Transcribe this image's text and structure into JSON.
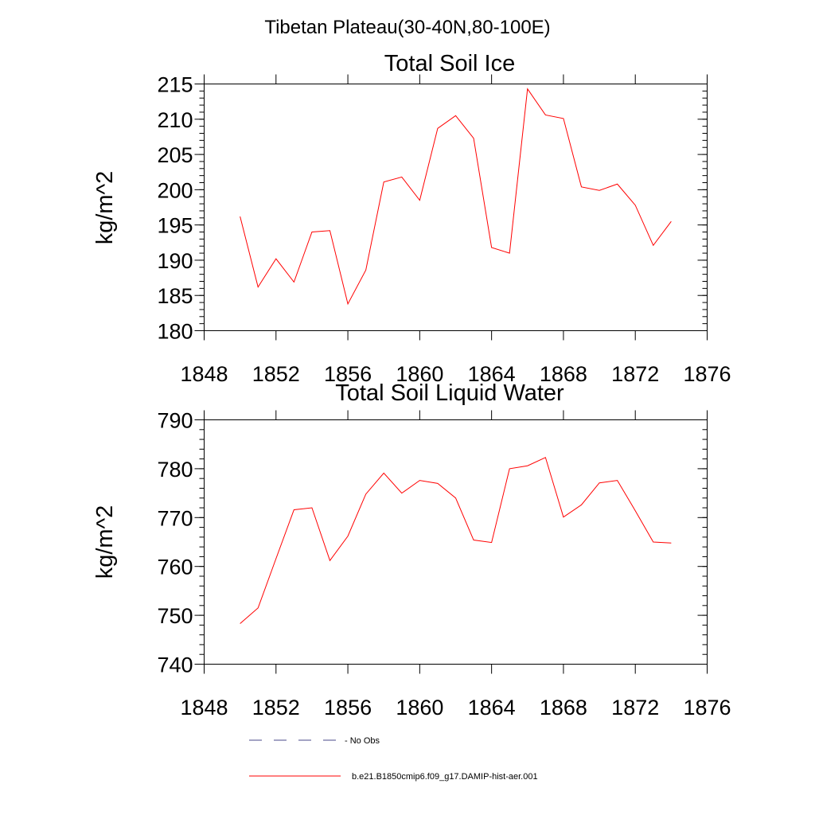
{
  "page": {
    "title": "Tibetan Plateau(30-40N,80-100E)"
  },
  "colors": {
    "series": "#ff0000",
    "no_obs": "#4a4a8a",
    "axes": "#000000",
    "background": "#ffffff"
  },
  "chart_data": [
    {
      "type": "line",
      "title": "Total Soil Ice",
      "xlabel": "",
      "ylabel": "kg/m^2",
      "xlim": [
        1848,
        1876
      ],
      "ylim": [
        180,
        215
      ],
      "xticks": [
        1848,
        1852,
        1856,
        1860,
        1864,
        1868,
        1872,
        1876
      ],
      "yticks": [
        180,
        185,
        190,
        195,
        200,
        205,
        210,
        215
      ],
      "grid": false,
      "x": [
        1850,
        1851,
        1852,
        1853,
        1854,
        1855,
        1856,
        1857,
        1858,
        1859,
        1860,
        1861,
        1862,
        1863,
        1864,
        1865,
        1866,
        1867,
        1868,
        1869,
        1870,
        1871,
        1872,
        1873,
        1874
      ],
      "series": [
        {
          "name": "b.e21.B1850cmip6.f09_g17.DAMIP-hist-aer.001",
          "values": [
            196.2,
            186.2,
            190.2,
            186.9,
            194.0,
            194.2,
            183.8,
            188.6,
            201.1,
            201.8,
            198.5,
            208.7,
            210.5,
            207.3,
            191.8,
            191.0,
            214.3,
            210.6,
            210.1,
            200.4,
            199.9,
            200.8,
            197.8,
            192.1,
            195.5
          ]
        }
      ]
    },
    {
      "type": "line",
      "title": "Total Soil Liquid Water",
      "xlabel": "",
      "ylabel": "kg/m^2",
      "xlim": [
        1848,
        1876
      ],
      "ylim": [
        740,
        790
      ],
      "xticks": [
        1848,
        1852,
        1856,
        1860,
        1864,
        1868,
        1872,
        1876
      ],
      "yticks": [
        740,
        750,
        760,
        770,
        780,
        790
      ],
      "grid": false,
      "x": [
        1850,
        1851,
        1852,
        1853,
        1854,
        1855,
        1856,
        1857,
        1858,
        1859,
        1860,
        1861,
        1862,
        1863,
        1864,
        1865,
        1866,
        1867,
        1868,
        1869,
        1870,
        1871,
        1872,
        1873,
        1874
      ],
      "series": [
        {
          "name": "b.e21.B1850cmip6.f09_g17.DAMIP-hist-aer.001",
          "values": [
            748.3,
            751.5,
            761.6,
            771.6,
            772.0,
            761.2,
            766.2,
            774.8,
            779.1,
            775.0,
            777.6,
            777.0,
            774.0,
            765.4,
            764.9,
            780.0,
            780.6,
            782.3,
            770.1,
            772.6,
            777.1,
            777.6,
            771.4,
            765.0,
            764.8
          ]
        }
      ]
    }
  ],
  "legend": {
    "items": [
      {
        "label": "- No Obs",
        "style": "dashed",
        "color_key": "no_obs"
      },
      {
        "label": "b.e21.B1850cmip6.f09_g17.DAMIP-hist-aer.001",
        "style": "solid",
        "color_key": "series"
      }
    ]
  }
}
